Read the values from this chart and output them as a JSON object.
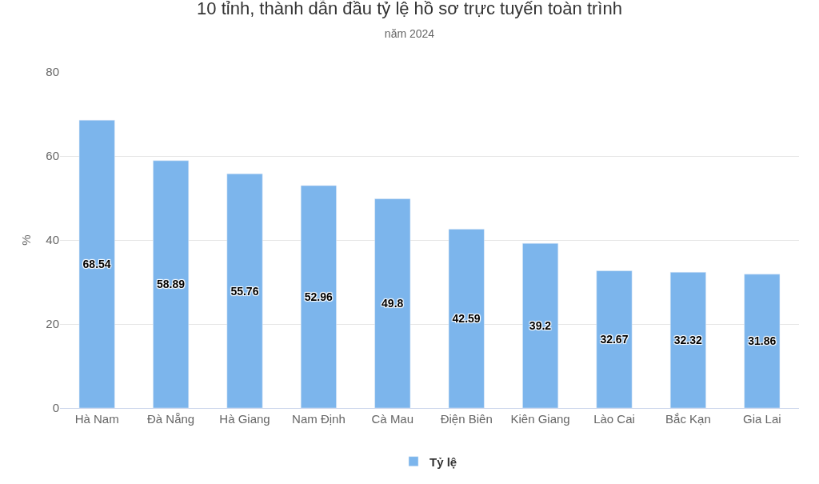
{
  "chart_data": {
    "type": "bar",
    "title": "10 tỉnh, thành dẫn đầu tỷ lệ hồ sơ trực tuyến toàn trình",
    "subtitle": "năm 2024",
    "ylabel": "%",
    "categories": [
      "Hà Nam",
      "Đà Nẵng",
      "Hà Giang",
      "Nam Định",
      "Cà Mau",
      "Điện Biên",
      "Kiên Giang",
      "Lào Cai",
      "Bắc Kạn",
      "Gia Lai"
    ],
    "series": [
      {
        "name": "Tỷ lệ",
        "color": "#7cb5ec",
        "values": [
          68.54,
          58.89,
          55.76,
          52.96,
          49.8,
          42.59,
          39.2,
          32.67,
          32.32,
          31.86
        ]
      }
    ],
    "ylim": [
      0,
      80
    ],
    "yticks": [
      0,
      20,
      40,
      60,
      80
    ],
    "grid": "y",
    "legend": "bottom",
    "data_labels": true
  }
}
